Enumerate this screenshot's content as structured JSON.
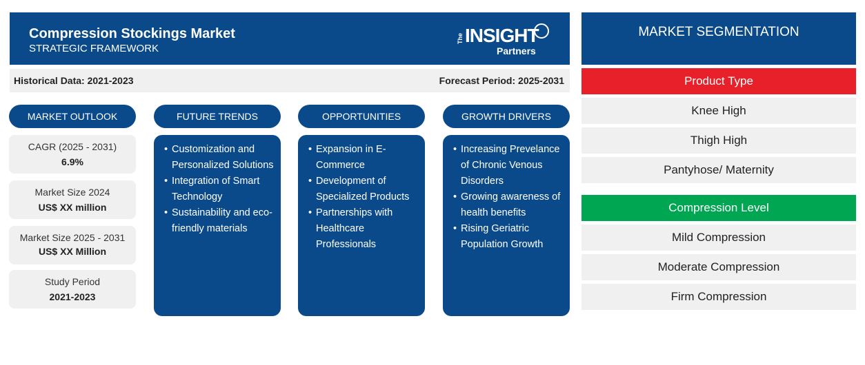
{
  "header": {
    "title": "Compression Stockings Market",
    "subtitle": "STRATEGIC FRAMEWORK",
    "logo": {
      "the": "The",
      "word": "INSIGHT",
      "partners": "Partners"
    }
  },
  "period": {
    "historical": "Historical Data: 2021-2023",
    "forecast": "Forecast Period: 2025-2031"
  },
  "columns": {
    "outlook": "MARKET OUTLOOK",
    "trends": "FUTURE TRENDS",
    "opportunities": "OPPORTUNITIES",
    "drivers": "GROWTH DRIVERS"
  },
  "outlook": [
    {
      "label": "CAGR (2025 - 2031)",
      "value": "6.9%"
    },
    {
      "label": "Market Size 2024",
      "value": "US$ XX million"
    },
    {
      "label": "Market Size 2025 - 2031",
      "value": "US$ XX Million"
    },
    {
      "label": "Study Period",
      "value": "2021-2023"
    }
  ],
  "trends": [
    "Customization and Personalized Solutions",
    "Integration of Smart Technology",
    "Sustainability and eco-friendly materials"
  ],
  "opportunities": [
    "Expansion in E-Commerce",
    "Development of Specialized Products",
    "Partnerships with Healthcare Professionals"
  ],
  "drivers": [
    "Increasing Prevelance of Chronic Venous Disorders",
    "Growing awareness of health benefits",
    "Rising Geriatric Population Growth"
  ],
  "segmentation": {
    "title": "MARKET SEGMENTATION",
    "product_type": {
      "label": "Product Type",
      "items": [
        "Knee High",
        "Thigh High",
        "Pantyhose/ Maternity"
      ]
    },
    "compression_level": {
      "label": "Compression Level",
      "items": [
        "Mild Compression",
        "Moderate Compression",
        "Firm Compression"
      ]
    }
  },
  "colors": {
    "primary_blue": "#0b4a8a",
    "product_red": "#e8202a",
    "compression_green": "#00a651",
    "panel_gray": "#f0f0f0"
  }
}
